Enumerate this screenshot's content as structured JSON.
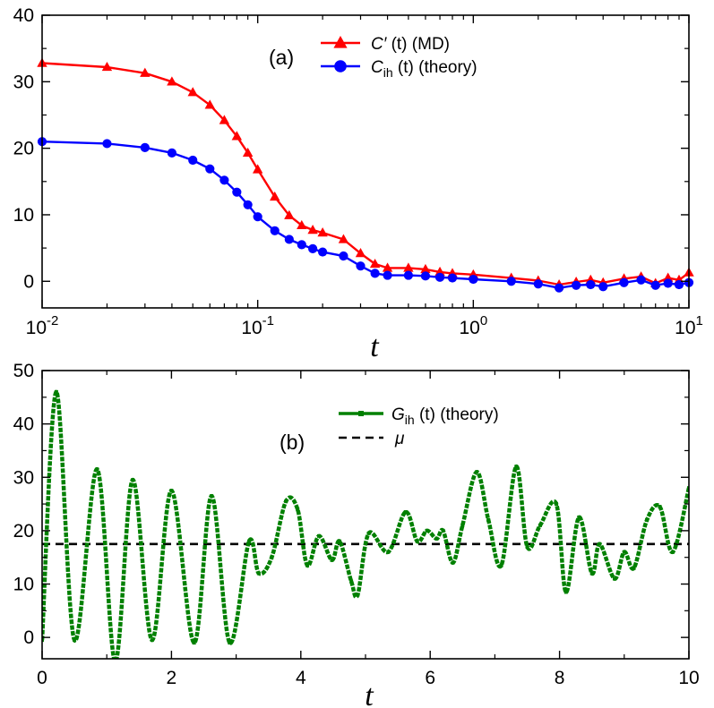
{
  "chart_data": [
    {
      "panel": "(a)",
      "type": "line",
      "xscale": "log",
      "xlim": [
        0.01,
        10
      ],
      "ylim": [
        -4,
        40
      ],
      "xticks": [
        0.01,
        0.1,
        1,
        10
      ],
      "xtick_labels": [
        {
          "base": "10",
          "exp": "-2"
        },
        {
          "base": "10",
          "exp": "-1"
        },
        {
          "base": "10",
          "exp": "0"
        },
        {
          "base": "10",
          "exp": "1"
        }
      ],
      "yticks": [
        0,
        10,
        20,
        30,
        40
      ],
      "xlabel": "t",
      "ylabel": "",
      "legend_position": "top-center",
      "series": [
        {
          "name": "C′ (t)  (MD)",
          "legend": {
            "pre": "C′",
            "mid": " (t)  ",
            "post": "(MD)"
          },
          "color": "#ff0000",
          "marker": "triangle",
          "x": [
            0.01,
            0.02,
            0.03,
            0.04,
            0.05,
            0.06,
            0.07,
            0.08,
            0.09,
            0.1,
            0.12,
            0.14,
            0.16,
            0.18,
            0.2,
            0.25,
            0.3,
            0.35,
            0.4,
            0.5,
            0.6,
            0.7,
            0.8,
            1.0,
            1.5,
            2.0,
            2.5,
            3.0,
            3.5,
            4.0,
            5.0,
            6.0,
            7.0,
            8.0,
            9.0,
            10.0
          ],
          "y": [
            32.8,
            32.2,
            31.3,
            30.0,
            28.4,
            26.5,
            24.2,
            21.8,
            19.3,
            16.8,
            12.7,
            9.9,
            8.4,
            7.7,
            7.3,
            6.3,
            4.2,
            2.6,
            2.0,
            2.0,
            1.8,
            1.4,
            1.2,
            1.0,
            0.5,
            0.1,
            -0.5,
            -0.1,
            0.2,
            -0.2,
            0.4,
            0.7,
            -0.3,
            0.5,
            0.2,
            1.3
          ]
        },
        {
          "name": "Cih (t)  (theory)",
          "legend": {
            "pre": "C",
            "sub": "ih",
            "mid": " (t)  ",
            "post": "(theory)"
          },
          "color": "#0000ff",
          "marker": "circle",
          "x": [
            0.01,
            0.02,
            0.03,
            0.04,
            0.05,
            0.06,
            0.07,
            0.08,
            0.09,
            0.1,
            0.12,
            0.14,
            0.16,
            0.18,
            0.2,
            0.25,
            0.3,
            0.35,
            0.4,
            0.5,
            0.6,
            0.7,
            0.8,
            1.0,
            1.5,
            2.0,
            2.5,
            3.0,
            3.5,
            4.0,
            5.0,
            6.0,
            7.0,
            8.0,
            9.0,
            10.0
          ],
          "y": [
            21.0,
            20.7,
            20.1,
            19.3,
            18.2,
            16.9,
            15.2,
            13.4,
            11.5,
            9.7,
            7.6,
            6.3,
            5.5,
            4.9,
            4.4,
            3.8,
            2.3,
            1.2,
            0.9,
            0.9,
            0.8,
            0.6,
            0.5,
            0.3,
            0.0,
            -0.4,
            -1.0,
            -0.6,
            -0.5,
            -0.8,
            -0.2,
            0.2,
            -0.6,
            -0.3,
            -0.5,
            -0.2
          ]
        }
      ]
    },
    {
      "panel": "(b)",
      "type": "line",
      "xlim": [
        0,
        10
      ],
      "ylim": [
        -4,
        50
      ],
      "xticks": [
        0,
        2,
        4,
        6,
        8,
        10
      ],
      "yticks": [
        0,
        10,
        20,
        30,
        40,
        50
      ],
      "xlabel": "t",
      "ylabel": "",
      "legend_position": "top-center",
      "mu": 17.5,
      "legend_mu": "μ",
      "series": [
        {
          "name": "Gih (t) (theory)",
          "legend": {
            "pre": "G",
            "sub": "ih",
            "mid": " (t) ",
            "post": "(theory)"
          },
          "color": "#008000",
          "marker": "square",
          "x": [
            0.0,
            0.22,
            0.5,
            0.85,
            1.13,
            1.4,
            1.7,
            2.0,
            2.35,
            2.62,
            2.9,
            3.2,
            3.35,
            3.55,
            3.77,
            3.95,
            4.1,
            4.28,
            4.48,
            4.6,
            4.78,
            4.88,
            5.05,
            5.35,
            5.62,
            5.8,
            5.95,
            6.1,
            6.2,
            6.35,
            6.5,
            6.72,
            6.9,
            7.1,
            7.33,
            7.5,
            7.7,
            7.95,
            8.1,
            8.3,
            8.5,
            8.62,
            8.85,
            9.0,
            9.15,
            9.35,
            9.55,
            9.75,
            10.0
          ],
          "y": [
            -0.5,
            46.0,
            -0.5,
            31.5,
            -4.5,
            29.5,
            -0.5,
            27.5,
            -1.0,
            26.5,
            -1.0,
            18.0,
            12.0,
            15.0,
            25.5,
            24.0,
            13.5,
            19.0,
            14.5,
            18.0,
            10.5,
            8.0,
            19.5,
            16.0,
            23.5,
            18.0,
            20.0,
            18.5,
            20.0,
            14.0,
            21.0,
            31.0,
            22.0,
            13.5,
            32.0,
            17.0,
            21.0,
            25.0,
            8.5,
            22.5,
            12.0,
            17.5,
            11.0,
            16.0,
            13.0,
            22.0,
            24.5,
            16.0,
            28.0
          ]
        }
      ]
    }
  ]
}
